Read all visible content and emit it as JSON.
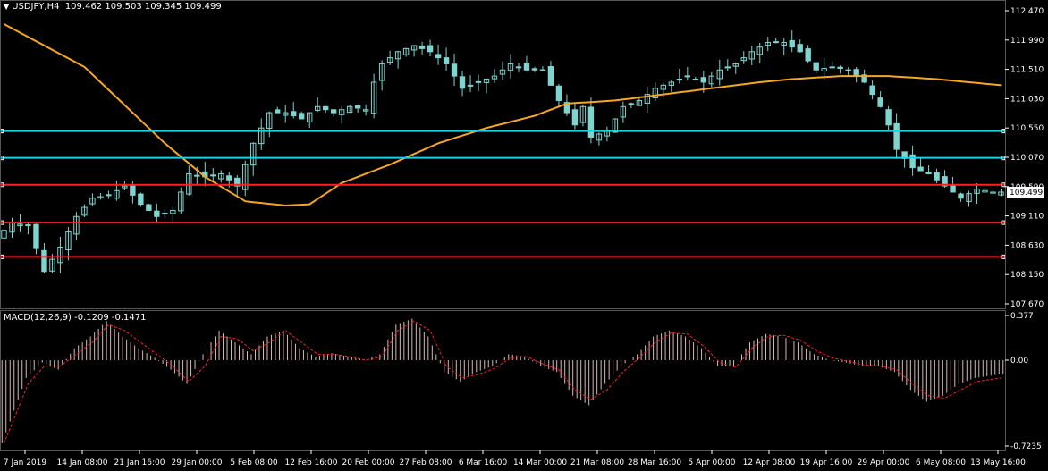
{
  "header": {
    "symbol": "USDJPY,H4",
    "ohlc": "109.462 109.503 109.345 109.499"
  },
  "colors": {
    "background": "#000000",
    "candle": "#7fd4cf",
    "ma": "#f5a623",
    "support_cyan": "#19d4e0",
    "resistance_red": "#ff1f1f",
    "macd_hist": "#d8b8b8",
    "macd_signal": "#ff2020",
    "grid": "#3a3a3a"
  },
  "chart_data": [
    {
      "type": "candlestick",
      "title": "USDJPY,H4",
      "ylim": [
        107.67,
        112.47
      ],
      "y_ticks": [
        "112.470",
        "111.990",
        "111.510",
        "111.030",
        "110.550",
        "110.070",
        "109.590",
        "109.110",
        "108.630",
        "108.150",
        "107.670"
      ],
      "x_ticks": [
        "7 Jan 2019",
        "14 Jan 08:00",
        "21 Jan 16:00",
        "29 Jan 00:00",
        "5 Feb 08:00",
        "12 Feb 16:00",
        "20 Feb 00:00",
        "27 Feb 08:00",
        "6 Mar 16:00",
        "14 Mar 00:00",
        "21 Mar 08:00",
        "28 Mar 16:00",
        "5 Apr 00:00",
        "12 Apr 08:00",
        "19 Apr 16:00",
        "29 Apr 00:00",
        "6 May 08:00",
        "13 May 16:00"
      ],
      "current_price": "109.499",
      "close_path": [
        [
          0,
          108.75
        ],
        [
          2,
          109.0
        ],
        [
          4,
          108.95
        ],
        [
          6,
          108.2
        ],
        [
          8,
          108.6
        ],
        [
          10,
          109.1
        ],
        [
          12,
          109.4
        ],
        [
          14,
          109.45
        ],
        [
          16,
          109.6
        ],
        [
          18,
          109.3
        ],
        [
          20,
          109.1
        ],
        [
          22,
          109.2
        ],
        [
          24,
          109.8
        ],
        [
          26,
          109.75
        ],
        [
          28,
          109.8
        ],
        [
          30,
          109.6
        ],
        [
          32,
          110.3
        ],
        [
          34,
          110.8
        ],
        [
          36,
          110.8
        ],
        [
          38,
          110.7
        ],
        [
          40,
          110.9
        ],
        [
          42,
          110.8
        ],
        [
          44,
          110.9
        ],
        [
          46,
          110.85
        ],
        [
          47,
          111.3
        ],
        [
          48,
          111.6
        ],
        [
          50,
          111.8
        ],
        [
          52,
          111.9
        ],
        [
          54,
          111.8
        ],
        [
          56,
          111.6
        ],
        [
          58,
          111.2
        ],
        [
          60,
          111.3
        ],
        [
          62,
          111.4
        ],
        [
          64,
          111.6
        ],
        [
          66,
          111.5
        ],
        [
          68,
          111.5
        ],
        [
          70,
          111.0
        ],
        [
          72,
          110.6
        ],
        [
          73,
          110.9
        ],
        [
          74,
          110.4
        ],
        [
          76,
          110.5
        ],
        [
          78,
          110.9
        ],
        [
          80,
          111.0
        ],
        [
          82,
          111.2
        ],
        [
          84,
          111.3
        ],
        [
          86,
          111.4
        ],
        [
          88,
          111.3
        ],
        [
          90,
          111.5
        ],
        [
          92,
          111.6
        ],
        [
          94,
          111.8
        ],
        [
          96,
          111.95
        ],
        [
          98,
          111.95
        ],
        [
          100,
          111.8
        ],
        [
          102,
          111.5
        ],
        [
          104,
          111.55
        ],
        [
          106,
          111.5
        ],
        [
          108,
          111.3
        ],
        [
          110,
          110.9
        ],
        [
          111,
          110.6
        ],
        [
          112,
          110.2
        ],
        [
          114,
          109.9
        ],
        [
          116,
          109.8
        ],
        [
          118,
          109.6
        ],
        [
          120,
          109.4
        ],
        [
          122,
          109.55
        ],
        [
          124,
          109.5
        ]
      ],
      "moving_average": [
        [
          0,
          112.25
        ],
        [
          10,
          111.55
        ],
        [
          20,
          110.3
        ],
        [
          25,
          109.75
        ],
        [
          30,
          109.35
        ],
        [
          35,
          109.28
        ],
        [
          38,
          109.3
        ],
        [
          42,
          109.65
        ],
        [
          48,
          109.95
        ],
        [
          54,
          110.3
        ],
        [
          60,
          110.55
        ],
        [
          66,
          110.75
        ],
        [
          70,
          110.95
        ],
        [
          76,
          111.0
        ],
        [
          82,
          111.1
        ],
        [
          88,
          111.2
        ],
        [
          94,
          111.3
        ],
        [
          98,
          111.35
        ],
        [
          104,
          111.4
        ],
        [
          110,
          111.4
        ],
        [
          116,
          111.35
        ],
        [
          124,
          111.25
        ]
      ],
      "horizontal_levels": [
        {
          "price": 110.5,
          "color": "cyan"
        },
        {
          "price": 110.06,
          "color": "cyan"
        },
        {
          "price": 109.62,
          "color": "red"
        },
        {
          "price": 109.0,
          "color": "red"
        },
        {
          "price": 108.44,
          "color": "red"
        }
      ]
    },
    {
      "type": "macd",
      "title": "MACD(12,26,9) -0.1209 -0.1471",
      "ylim": [
        -0.7235,
        0.377
      ],
      "y_ticks": [
        "0.377",
        "0.00",
        "-0.7235"
      ],
      "histogram_path": [
        [
          0,
          -0.7
        ],
        [
          3,
          -0.15
        ],
        [
          5,
          -0.02
        ],
        [
          7,
          -0.08
        ],
        [
          9,
          0.1
        ],
        [
          11,
          0.2
        ],
        [
          13,
          0.33
        ],
        [
          15,
          0.2
        ],
        [
          17,
          0.1
        ],
        [
          19,
          0.02
        ],
        [
          21,
          -0.08
        ],
        [
          23,
          -0.2
        ],
        [
          25,
          0.05
        ],
        [
          27,
          0.25
        ],
        [
          29,
          0.15
        ],
        [
          31,
          0.05
        ],
        [
          33,
          0.2
        ],
        [
          35,
          0.25
        ],
        [
          37,
          0.1
        ],
        [
          39,
          0.03
        ],
        [
          41,
          0.06
        ],
        [
          43,
          0.03
        ],
        [
          45,
          0.0
        ],
        [
          47,
          0.05
        ],
        [
          49,
          0.3
        ],
        [
          51,
          0.35
        ],
        [
          53,
          0.2
        ],
        [
          55,
          -0.1
        ],
        [
          57,
          -0.18
        ],
        [
          59,
          -0.1
        ],
        [
          61,
          -0.05
        ],
        [
          63,
          0.05
        ],
        [
          65,
          0.03
        ],
        [
          67,
          -0.05
        ],
        [
          69,
          -0.1
        ],
        [
          71,
          -0.3
        ],
        [
          73,
          -0.38
        ],
        [
          75,
          -0.2
        ],
        [
          77,
          -0.05
        ],
        [
          79,
          0.05
        ],
        [
          81,
          0.2
        ],
        [
          83,
          0.25
        ],
        [
          85,
          0.2
        ],
        [
          87,
          0.1
        ],
        [
          89,
          -0.05
        ],
        [
          91,
          -0.05
        ],
        [
          93,
          0.15
        ],
        [
          95,
          0.22
        ],
        [
          97,
          0.2
        ],
        [
          99,
          0.15
        ],
        [
          101,
          0.05
        ],
        [
          103,
          0.0
        ],
        [
          105,
          -0.02
        ],
        [
          107,
          -0.05
        ],
        [
          109,
          -0.05
        ],
        [
          111,
          -0.1
        ],
        [
          113,
          -0.25
        ],
        [
          115,
          -0.35
        ],
        [
          117,
          -0.3
        ],
        [
          119,
          -0.2
        ],
        [
          121,
          -0.15
        ],
        [
          124,
          -0.12
        ]
      ],
      "signal_path": [
        [
          0,
          -0.7
        ],
        [
          3,
          -0.2
        ],
        [
          5,
          -0.05
        ],
        [
          7,
          -0.05
        ],
        [
          9,
          0.05
        ],
        [
          11,
          0.15
        ],
        [
          13,
          0.3
        ],
        [
          15,
          0.25
        ],
        [
          17,
          0.15
        ],
        [
          19,
          0.05
        ],
        [
          21,
          -0.05
        ],
        [
          23,
          -0.18
        ],
        [
          25,
          -0.05
        ],
        [
          27,
          0.2
        ],
        [
          29,
          0.18
        ],
        [
          31,
          0.08
        ],
        [
          33,
          0.15
        ],
        [
          35,
          0.25
        ],
        [
          37,
          0.15
        ],
        [
          39,
          0.05
        ],
        [
          41,
          0.05
        ],
        [
          43,
          0.03
        ],
        [
          45,
          0.0
        ],
        [
          47,
          0.03
        ],
        [
          49,
          0.25
        ],
        [
          51,
          0.33
        ],
        [
          53,
          0.25
        ],
        [
          55,
          -0.05
        ],
        [
          57,
          -0.15
        ],
        [
          59,
          -0.12
        ],
        [
          61,
          -0.07
        ],
        [
          63,
          0.02
        ],
        [
          65,
          0.03
        ],
        [
          67,
          -0.03
        ],
        [
          69,
          -0.08
        ],
        [
          71,
          -0.25
        ],
        [
          73,
          -0.33
        ],
        [
          75,
          -0.25
        ],
        [
          77,
          -0.1
        ],
        [
          79,
          0.02
        ],
        [
          81,
          0.15
        ],
        [
          83,
          0.23
        ],
        [
          85,
          0.22
        ],
        [
          87,
          0.12
        ],
        [
          89,
          -0.02
        ],
        [
          91,
          -0.06
        ],
        [
          93,
          0.1
        ],
        [
          95,
          0.2
        ],
        [
          97,
          0.21
        ],
        [
          99,
          0.17
        ],
        [
          101,
          0.08
        ],
        [
          103,
          0.02
        ],
        [
          105,
          -0.01
        ],
        [
          107,
          -0.04
        ],
        [
          109,
          -0.05
        ],
        [
          111,
          -0.08
        ],
        [
          113,
          -0.2
        ],
        [
          115,
          -0.3
        ],
        [
          117,
          -0.32
        ],
        [
          119,
          -0.25
        ],
        [
          121,
          -0.18
        ],
        [
          124,
          -0.15
        ]
      ]
    }
  ]
}
